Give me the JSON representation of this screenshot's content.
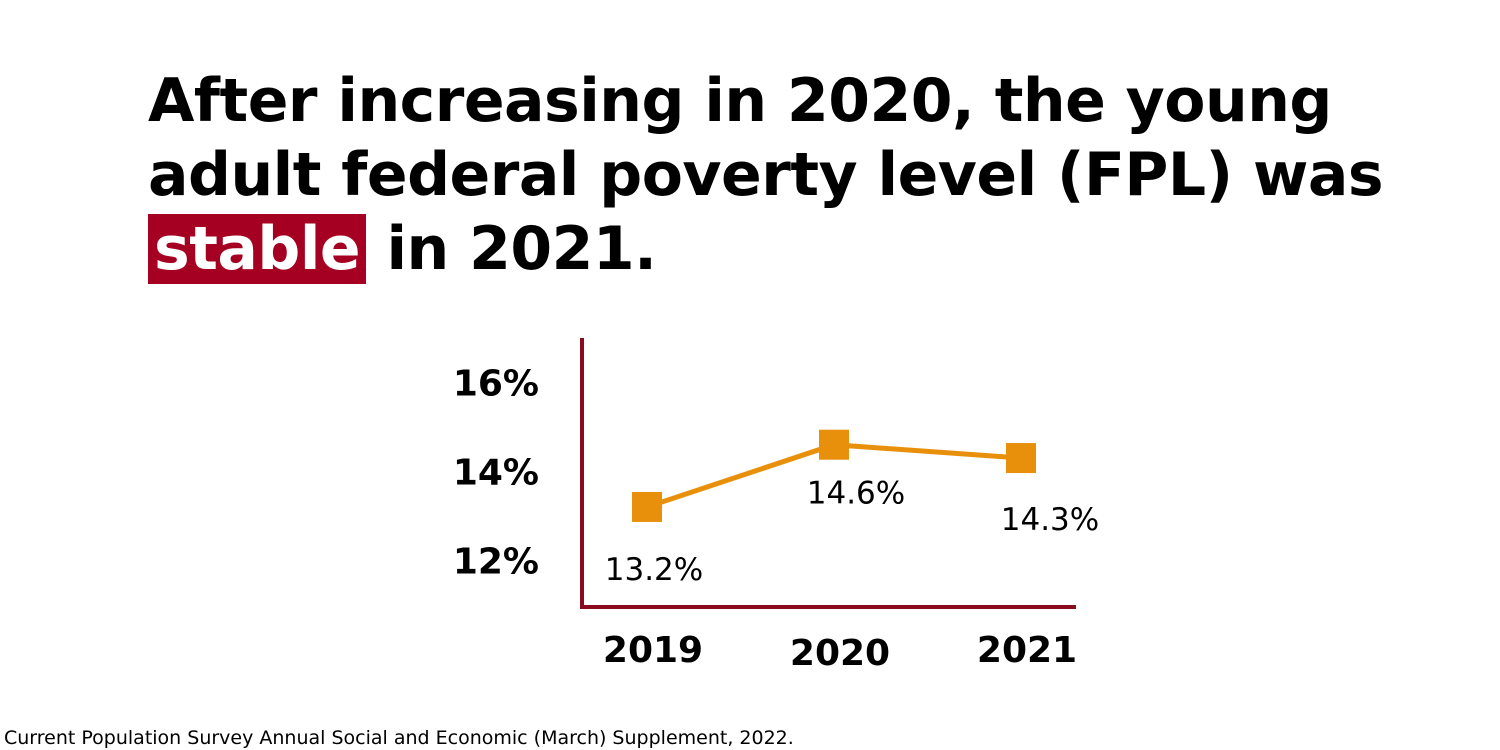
{
  "headline": {
    "before": "After increasing in 2020, the young adult federal poverty level (FPL) was",
    "highlight": "stable",
    "after": "in 2021."
  },
  "source": "Current Population Survey Annual Social and Economic (March) Supplement, 2022.",
  "colors": {
    "highlight_bg": "#a50021",
    "axis": "#8b0a1e",
    "series": "#e8900c",
    "text": "#000000"
  },
  "chart_data": {
    "type": "line",
    "title": "",
    "xlabel": "",
    "ylabel": "",
    "categories": [
      "2019",
      "2020",
      "2021"
    ],
    "series": [
      {
        "values": [
          13.2,
          14.6,
          14.3
        ],
        "labels": [
          "13.2%",
          "14.6%",
          "14.3%"
        ],
        "marker": "square"
      }
    ],
    "y_ticks": [
      12,
      14,
      16
    ],
    "y_tick_labels": [
      "12%",
      "14%",
      "16%"
    ],
    "ylim": [
      10.95,
      17
    ],
    "grid": false,
    "legend": "none"
  }
}
